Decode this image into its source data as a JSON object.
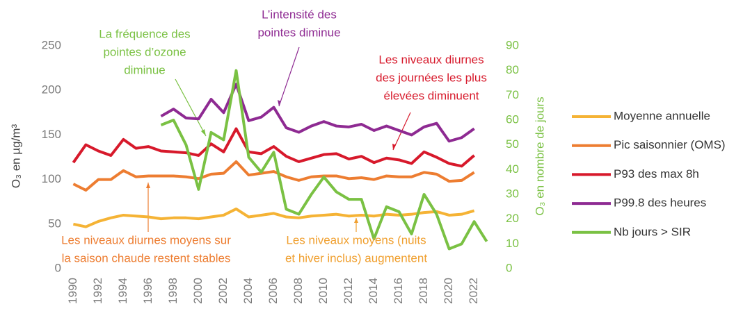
{
  "chart_data": {
    "type": "line",
    "ylabel": "O₃ en µg/m³",
    "y2label": "O₃ en nombre de jours",
    "x": [
      1990,
      1991,
      1992,
      1993,
      1994,
      1995,
      1996,
      1997,
      1998,
      1999,
      2000,
      2001,
      2002,
      2003,
      2004,
      2005,
      2006,
      2007,
      2008,
      2009,
      2010,
      2011,
      2012,
      2013,
      2014,
      2015,
      2016,
      2017,
      2018,
      2019,
      2020,
      2021,
      2022,
      2023
    ],
    "xlim": [
      1989.7,
      2023.3
    ],
    "xticks": [
      1990,
      1992,
      1994,
      1996,
      1998,
      2000,
      2002,
      2004,
      2006,
      2008,
      2010,
      2012,
      2014,
      2016,
      2018,
      2020,
      2022
    ],
    "ylim": [
      0,
      250
    ],
    "yticks": [
      0,
      50,
      100,
      150,
      200,
      250
    ],
    "y2lim": [
      0,
      90
    ],
    "y2ticks": [
      0,
      10,
      20,
      30,
      40,
      50,
      60,
      70,
      80,
      90
    ],
    "grid": false,
    "series": [
      {
        "name": "Moyenne annuelle",
        "color": "#f5b335",
        "values": [
          50,
          47,
          53,
          57,
          60,
          59,
          58,
          56,
          57,
          57,
          56,
          58,
          60,
          67,
          58,
          60,
          62,
          58,
          57,
          59,
          60,
          61,
          59,
          60,
          59,
          61,
          60,
          61,
          63,
          64,
          60,
          61,
          65,
          null
        ]
      },
      {
        "name": "Pic saisonnier (OMS)",
        "color": "#ed7d31",
        "values": [
          95,
          88,
          100,
          100,
          110,
          103,
          104,
          104,
          104,
          103,
          101,
          106,
          107,
          120,
          105,
          107,
          109,
          103,
          99,
          103,
          104,
          104,
          101,
          102,
          100,
          104,
          103,
          103,
          108,
          106,
          98,
          99,
          108,
          null
        ]
      },
      {
        "name": "P93 des max 8h",
        "color": "#d7192b",
        "values": [
          119,
          139,
          132,
          127,
          145,
          135,
          137,
          132,
          131,
          130,
          127,
          140,
          131,
          157,
          131,
          129,
          137,
          126,
          120,
          124,
          128,
          129,
          123,
          126,
          119,
          124,
          122,
          118,
          131,
          125,
          118,
          115,
          127,
          null
        ]
      },
      {
        "name": "P99.8 des heures",
        "color": "#8e2a92",
        "values": [
          null,
          null,
          null,
          null,
          null,
          null,
          null,
          171,
          179,
          169,
          168,
          190,
          175,
          207,
          166,
          170,
          181,
          158,
          153,
          160,
          165,
          160,
          159,
          162,
          155,
          160,
          155,
          150,
          159,
          163,
          143,
          147,
          157,
          null
        ]
      },
      {
        "name": "Nb jours > SIR",
        "color": "#7ac143",
        "axis": "y2",
        "values": [
          null,
          null,
          null,
          null,
          null,
          null,
          null,
          58,
          60,
          50,
          32,
          55,
          52,
          80,
          45,
          39,
          47,
          24,
          22,
          30,
          37,
          31,
          28,
          28,
          12,
          25,
          23,
          14,
          30,
          22,
          8,
          10,
          19,
          11
        ]
      }
    ],
    "annotations": [
      {
        "lines": [
          "La fréquence des",
          "pointes d’ozone",
          "diminue"
        ],
        "color": "#7ac143"
      },
      {
        "lines": [
          "L’intensité des",
          "pointes diminue"
        ],
        "color": "#8e2a92"
      },
      {
        "lines": [
          "Les niveaux diurnes",
          "des journées les plus",
          "élevées diminuent"
        ],
        "color": "#d7192b"
      },
      {
        "lines": [
          "Les niveaux diurnes moyens sur",
          "la saison chaude restent stables"
        ],
        "color": "#ed7d31"
      },
      {
        "lines": [
          "Les niveaux moyens (nuits",
          "et hiver inclus) augmentent"
        ],
        "color": "#f0a030"
      }
    ]
  }
}
